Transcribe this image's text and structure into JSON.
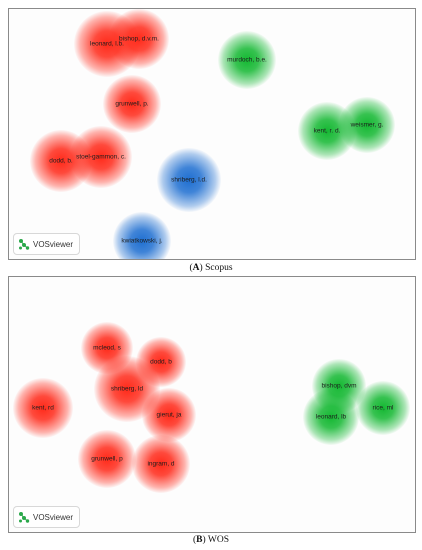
{
  "colors": {
    "red": "#ff2a1a",
    "green": "#14b832",
    "blue": "#1f6fd1"
  },
  "panel_a": {
    "caption_letter": "A",
    "caption_text": "Scopus",
    "logo_text": "VOSviewer",
    "logo_icon": "vosviewer-logo-icon",
    "nodes": [
      {
        "label": "bishop, d.v.m.",
        "cluster": "red"
      },
      {
        "label": "leonard, l.b.",
        "cluster": "red"
      },
      {
        "label": "grunwell, p.",
        "cluster": "red"
      },
      {
        "label": "dodd, b.",
        "cluster": "red"
      },
      {
        "label": "stoel-gammon, c.",
        "cluster": "red"
      },
      {
        "label": "murdoch, b.e.",
        "cluster": "green"
      },
      {
        "label": "kent, r. d.",
        "cluster": "green"
      },
      {
        "label": "weismer, g.",
        "cluster": "green"
      },
      {
        "label": "shriberg, l.d.",
        "cluster": "blue"
      },
      {
        "label": "kwiatkowski, j.",
        "cluster": "blue"
      }
    ]
  },
  "panel_b": {
    "caption_letter": "B",
    "caption_text": "WOS",
    "logo_text": "VOSviewer",
    "logo_icon": "vosviewer-logo-icon",
    "nodes": [
      {
        "label": "mcleod, s",
        "cluster": "red"
      },
      {
        "label": "dodd, b",
        "cluster": "red"
      },
      {
        "label": "shriberg, ld",
        "cluster": "red"
      },
      {
        "label": "kent, rd",
        "cluster": "red"
      },
      {
        "label": "gierut, ja",
        "cluster": "red"
      },
      {
        "label": "grunwell, p",
        "cluster": "red"
      },
      {
        "label": "ingram, d",
        "cluster": "red"
      },
      {
        "label": "bishop, dvm",
        "cluster": "green"
      },
      {
        "label": "leonard, lb",
        "cluster": "green"
      },
      {
        "label": "rice, ml",
        "cluster": "green"
      }
    ]
  }
}
